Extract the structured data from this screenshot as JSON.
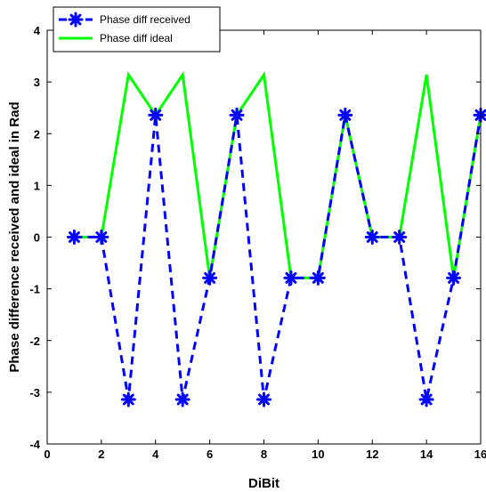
{
  "chart_data": {
    "type": "line",
    "title": "",
    "xlabel": "DiBit",
    "ylabel": "Phase difference received and ideal in Rad",
    "xlim": [
      0,
      16
    ],
    "ylim": [
      -4,
      4
    ],
    "xticks": [
      0,
      2,
      4,
      6,
      8,
      10,
      12,
      14,
      16
    ],
    "yticks": [
      -4,
      -3,
      -2,
      -1,
      0,
      1,
      2,
      3,
      4
    ],
    "grid": false,
    "legend_position": "top-left",
    "series": [
      {
        "name": "Phase diff received",
        "color": "#0000ff",
        "line_style": "dashed",
        "marker": "asterisk",
        "x": [
          1,
          2,
          3,
          4,
          5,
          6,
          7,
          8,
          9,
          10,
          11,
          12,
          13,
          14,
          15,
          16
        ],
        "values": [
          0,
          0,
          -3.14,
          2.36,
          -3.14,
          -0.79,
          2.36,
          -3.14,
          -0.79,
          -0.79,
          2.36,
          0,
          0,
          -3.14,
          -0.79,
          2.36
        ]
      },
      {
        "name": "Phase diff ideal",
        "color": "#00ff00",
        "line_style": "solid",
        "marker": "none",
        "x": [
          1,
          2,
          3,
          4,
          5,
          6,
          7,
          8,
          9,
          10,
          11,
          12,
          13,
          14,
          15,
          16
        ],
        "values": [
          0,
          0,
          3.14,
          2.36,
          3.14,
          -0.79,
          2.36,
          3.14,
          -0.79,
          -0.79,
          2.36,
          0,
          0,
          3.14,
          -0.79,
          2.36
        ]
      }
    ]
  }
}
